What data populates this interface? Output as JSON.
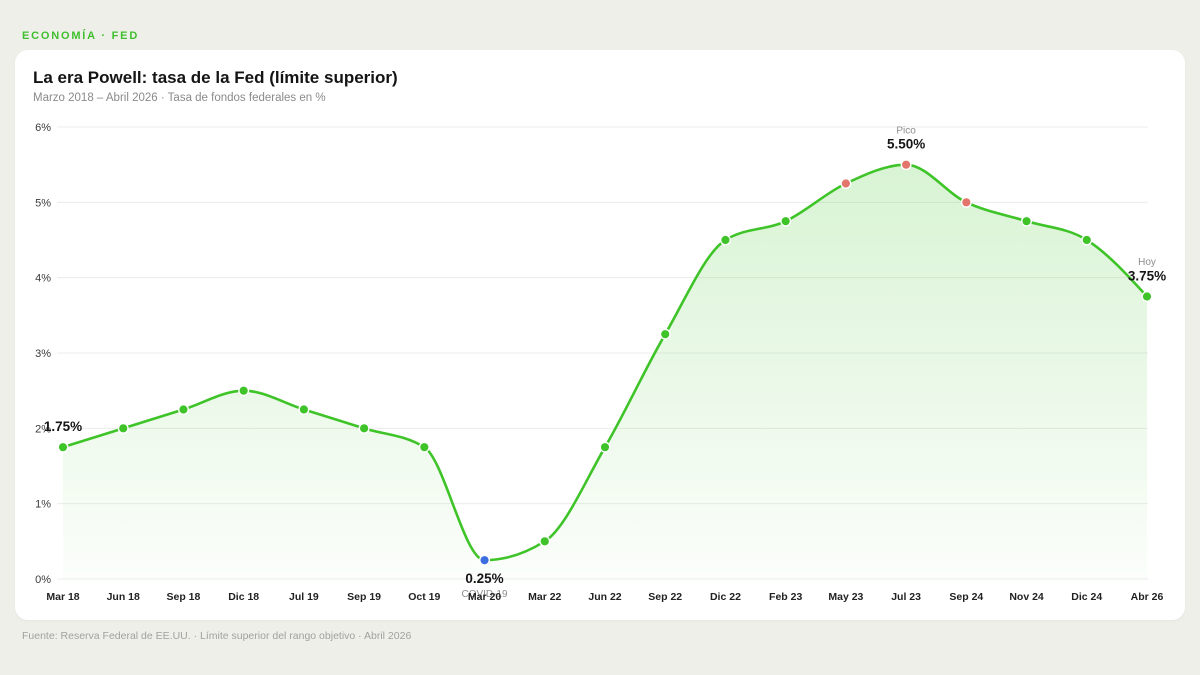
{
  "kicker": "ECONOMÍA · FED",
  "footer": "Fuente: Reserva Federal de EE.UU. · Límite superior del rango objetivo · Abril 2026",
  "colors": {
    "page_background": "#efefe9",
    "card_background": "#ffffff",
    "accent": "#3fbf2e",
    "line": "#3ec428",
    "area": "#3ec428",
    "marker": "#3ec428",
    "marker_outline": "#ffffff",
    "grid": "#ececec",
    "text": "#151515",
    "muted": "#8d8d8d"
  },
  "chart_data": {
    "type": "line",
    "title": "La era Powell: tasa de la Fed (límite superior)",
    "subtitle": "Marzo 2018 – Abril 2026 · Tasa de fondos federales en %",
    "categories": [
      "Mar 18",
      "Jun 18",
      "Sep 18",
      "Dic 18",
      "Jul 19",
      "Sep 19",
      "Oct 19",
      "Mar 20",
      "Mar 22",
      "Jun 22",
      "Sep 22",
      "Dic 22",
      "Feb 23",
      "May 23",
      "Jul 23",
      "Sep 24",
      "Nov 24",
      "Dic 24",
      "Abr 26"
    ],
    "series": [
      {
        "values": [
          1.75,
          2.0,
          2.25,
          2.5,
          2.25,
          2.0,
          1.75,
          0.25,
          0.5,
          1.75,
          3.25,
          4.5,
          4.75,
          5.25,
          5.5,
          5.0,
          4.75,
          4.5,
          3.75
        ]
      }
    ],
    "ylim": [
      0,
      6
    ],
    "y_ticks": [
      0,
      1,
      2,
      3,
      4,
      5,
      6
    ],
    "y_tick_labels": [
      "0%",
      "1%",
      "2%",
      "3%",
      "4%",
      "5%",
      "6%"
    ],
    "grid": true,
    "marker_colors": {
      "Mar 20": "#3d6ee0",
      "May 23": "#e3766c",
      "Jul 23": "#e3766c",
      "Sep 24": "#e3766c"
    },
    "data_labels": [
      "1.75%",
      null,
      null,
      null,
      null,
      null,
      null,
      "0.25%",
      null,
      null,
      null,
      null,
      null,
      null,
      "5.50%",
      null,
      null,
      null,
      "3.75%"
    ],
    "annotations": [
      null,
      null,
      null,
      null,
      null,
      null,
      null,
      "COVID-19",
      null,
      null,
      null,
      null,
      null,
      null,
      "Pico",
      null,
      null,
      null,
      "Hoy"
    ]
  }
}
